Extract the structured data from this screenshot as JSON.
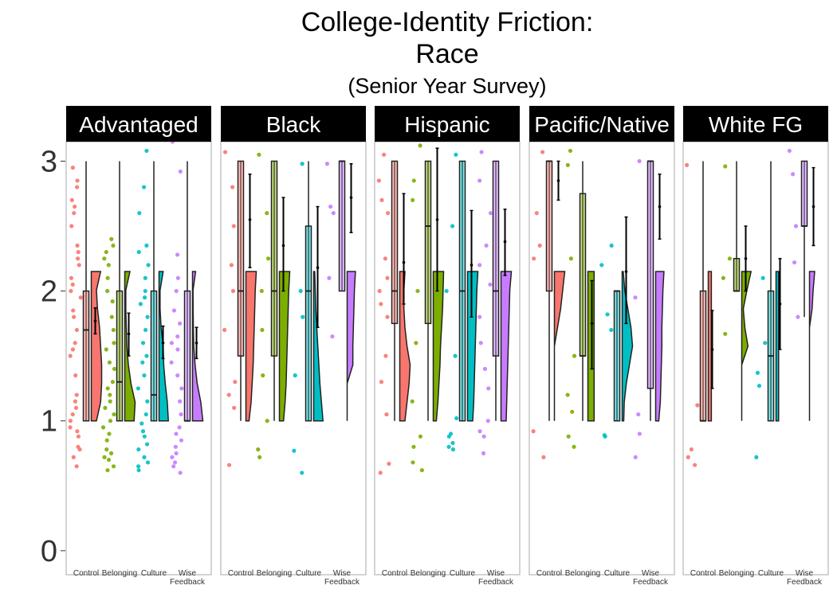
{
  "chart_data": {
    "type": "raincloud",
    "title_line1": "College-Identity Friction:",
    "title_line2": "Race",
    "subtitle": "(Senior Year Survey)",
    "xlabel": "",
    "ylabel": "",
    "ylim": [
      -0.05,
      3.15
    ],
    "y_ticks": [
      "0",
      "1",
      "2",
      "3"
    ],
    "categories": [
      "Control",
      "Belonging",
      "Culture",
      "Wise Feedback"
    ],
    "category_labels": [
      [
        "Control"
      ],
      [
        "Belonging"
      ],
      [
        "Culture"
      ],
      [
        "Wise",
        "Feedback"
      ]
    ],
    "series_colors": {
      "Control": "#F8766D",
      "Belonging": "#7CAE00",
      "Culture": "#00BFC4",
      "Wise Feedback": "#C77CFF"
    },
    "grid": false,
    "facets": [
      {
        "name": "Advantaged",
        "groups": [
          {
            "box": [
              1,
              1,
              1.7,
              2,
              3
            ],
            "mean": 1.77,
            "ci": [
              1.67,
              1.87
            ],
            "violin": [
              0.5,
              0.9,
              1.0,
              1.0,
              0.9,
              0.8,
              0.6,
              0.5,
              0.9
            ],
            "points": [
              0.92,
              0.88,
              1.0,
              0.65,
              0.72,
              0.8,
              0.95,
              1.1,
              1.2,
              1.35,
              1.5,
              1.55,
              1.7,
              1.8,
              1.85,
              1.95,
              2.0,
              2.05,
              2.1,
              2.2,
              2.3,
              2.35,
              2.5,
              2.6,
              2.7,
              2.8,
              2.85,
              2.95,
              0.78,
              1.05,
              1.15,
              1.6,
              2.25,
              2.65
            ]
          },
          {
            "box": [
              1,
              1,
              1.3,
              2,
              3
            ],
            "mean": 1.67,
            "ci": [
              1.5,
              1.83
            ],
            "violin": [
              0.9,
              1.0,
              0.6,
              0.35,
              0.2,
              0.15,
              0.1,
              0.1,
              0.5
            ],
            "points": [
              0.62,
              0.65,
              0.7,
              0.72,
              0.75,
              0.78,
              0.85,
              0.9,
              0.95,
              1.0,
              1.05,
              1.1,
              1.15,
              1.2,
              1.25,
              1.3,
              1.4,
              1.55,
              1.7,
              1.8,
              2.0,
              2.1,
              2.2,
              2.3,
              2.35,
              2.4,
              1.45,
              1.6,
              2.25,
              1.92
            ]
          },
          {
            "box": [
              1,
              1,
              1.2,
              2,
              3
            ],
            "mean": 1.6,
            "ci": [
              1.48,
              1.73
            ],
            "violin": [
              0.9,
              0.8,
              0.6,
              0.45,
              0.4,
              0.2,
              0.1,
              0.1,
              0.4
            ],
            "points": [
              0.62,
              0.65,
              0.68,
              0.72,
              0.78,
              0.82,
              0.88,
              0.92,
              0.98,
              1.05,
              1.15,
              1.25,
              1.35,
              1.5,
              1.6,
              1.7,
              1.8,
              1.9,
              2.0,
              2.1,
              2.2,
              2.3,
              2.35,
              2.6,
              2.8,
              3.08,
              1.45,
              1.95
            ]
          },
          {
            "box": [
              1,
              1,
              1,
              2,
              3
            ],
            "mean": 1.6,
            "ci": [
              1.48,
              1.72
            ],
            "violin": [
              1.0,
              0.8,
              0.45,
              0.25,
              0.12,
              0.08,
              0.06,
              0.05,
              0.3
            ],
            "points": [
              0.6,
              0.65,
              0.68,
              0.72,
              0.75,
              0.8,
              0.85,
              0.9,
              0.95,
              1.05,
              1.15,
              1.25,
              1.35,
              1.45,
              1.55,
              1.65,
              1.75,
              1.85,
              2.0,
              2.1,
              2.28,
              2.92,
              3.15,
              1.6
            ]
          }
        ]
      },
      {
        "name": "Black",
        "groups": [
          {
            "box": [
              1,
              1.5,
              2,
              3,
              3
            ],
            "mean": 2.55,
            "ci": [
              2.18,
              2.9
            ],
            "violin": [
              0.3,
              0.5,
              0.6,
              0.7,
              0.75,
              0.8,
              0.85,
              0.9,
              1.0
            ],
            "points": [
              0.66,
              1.1,
              1.2,
              1.3,
              1.7,
              2.0,
              2.2,
              2.5,
              2.8,
              3.07
            ]
          },
          {
            "box": [
              1,
              1.5,
              2,
              3,
              3
            ],
            "mean": 2.35,
            "ci": [
              2.0,
              2.72
            ],
            "violin": [
              0.4,
              0.55,
              0.65,
              0.7,
              0.75,
              0.8,
              0.85,
              0.9,
              1.0
            ],
            "points": [
              0.72,
              0.78,
              1.0,
              1.35,
              1.7,
              2.0,
              2.25,
              2.6,
              3.05
            ]
          },
          {
            "box": [
              1,
              1,
              2,
              2.5,
              3
            ],
            "mean": 2.18,
            "ci": [
              1.72,
              2.65
            ],
            "violin": [
              0.9,
              0.75,
              0.6,
              0.5,
              0.4,
              0.3,
              0.2,
              0.15,
              0.1
            ],
            "points": [
              0.6,
              0.77,
              1.35,
              1.8,
              2.0,
              2.98
            ]
          },
          {
            "box": [
              2,
              2,
              3,
              3,
              3
            ],
            "mean": 2.72,
            "ci": [
              2.45,
              2.98
            ],
            "violin": [
              0,
              0,
              0,
              0.55,
              0.55,
              0.6,
              0.65,
              0.7,
              0.8
            ],
            "points": [
              1.65,
              2.1,
              2.6,
              2.65,
              2.98
            ]
          }
        ]
      },
      {
        "name": "Hispanic",
        "groups": [
          {
            "box": [
              1,
              1.75,
              2,
              3,
              3
            ],
            "mean": 2.22,
            "ci": [
              1.9,
              2.75
            ],
            "violin": [
              0.5,
              0.7,
              0.9,
              1.0,
              0.7,
              0.5,
              0.4,
              0.4,
              0.5
            ],
            "points": [
              0.6,
              0.67,
              1.05,
              1.3,
              1.5,
              1.8,
              1.9,
              2.0,
              2.1,
              2.25,
              2.6,
              2.7,
              2.85,
              3.05
            ]
          },
          {
            "box": [
              1,
              1.75,
              2.5,
              3,
              3
            ],
            "mean": 2.55,
            "ci": [
              2.0,
              3.1
            ],
            "violin": [
              0.3,
              0.45,
              0.55,
              0.65,
              0.7,
              0.8,
              0.9,
              0.95,
              1.0
            ],
            "points": [
              0.62,
              0.68,
              0.8,
              0.88,
              1.15,
              1.6,
              2.0,
              2.7,
              2.85,
              3.12
            ]
          },
          {
            "box": [
              1,
              1,
              2,
              3,
              3
            ],
            "mean": 2.2,
            "ci": [
              1.8,
              2.62
            ],
            "violin": [
              0.5,
              0.6,
              0.65,
              0.7,
              0.75,
              0.8,
              0.85,
              0.9,
              1.0
            ],
            "points": [
              0.78,
              0.8,
              0.83,
              0.88,
              0.9,
              1.02,
              1.5,
              2.0,
              2.5,
              3.05
            ]
          },
          {
            "box": [
              1,
              1.5,
              2,
              3,
              3
            ],
            "mean": 2.38,
            "ci": [
              2.12,
              2.63
            ],
            "violin": [
              0.5,
              0.55,
              0.6,
              0.65,
              0.7,
              0.75,
              0.8,
              0.85,
              1.0
            ],
            "points": [
              0.75,
              0.88,
              0.92,
              1.0,
              1.25,
              1.4,
              1.6,
              1.8,
              2.05,
              2.2,
              2.35,
              2.6,
              2.85,
              3.07
            ]
          }
        ]
      },
      {
        "name": "Pacific/Native",
        "groups": [
          {
            "box": [
              1,
              2,
              3,
              3,
              3
            ],
            "mean": 2.85,
            "ci": [
              2.7,
              3.0
            ],
            "violin": [
              0,
              0,
              0,
              0,
              0,
              0.3,
              0.6,
              0.8,
              1.0
            ],
            "points": [
              0.72,
              0.92,
              2.25,
              2.35,
              2.6,
              3.07
            ]
          },
          {
            "box": [
              1,
              1.5,
              1.5,
              2.75,
              3
            ],
            "mean": 1.75,
            "ci": [
              1.4,
              2.08
            ],
            "violin": [
              0.6,
              0.6,
              0.6,
              0.6,
              0.6,
              0.6,
              0.6,
              0.6,
              0.6
            ],
            "points": [
              0.8,
              0.88,
              1.07,
              1.2,
              1.5,
              2.25,
              2.97,
              3.08
            ]
          },
          {
            "box": [
              1,
              1,
              2,
              2,
              2
            ],
            "mean": 2.15,
            "ci": [
              1.75,
              2.57
            ],
            "violin": [
              0.15,
              0.2,
              0.4,
              0.7,
              1.0,
              0.85,
              0.55,
              0.25,
              0.1
            ],
            "points": [
              0.88,
              0.89,
              1.7,
              1.82,
              2.2,
              2.35
            ]
          },
          {
            "box": [
              1,
              1.25,
              3,
              3,
              3
            ],
            "mean": 2.65,
            "ci": [
              2.4,
              2.9
            ],
            "violin": [
              0.3,
              0.45,
              0.5,
              0.55,
              0.6,
              0.6,
              0.65,
              0.7,
              0.8
            ],
            "points": [
              0.72,
              0.9,
              1.05,
              1.95,
              3.0
            ]
          }
        ]
      },
      {
        "name": "White FG",
        "groups": [
          {
            "box": [
              1,
              1,
              1,
              2,
              3
            ],
            "mean": 1.55,
            "ci": [
              1.25,
              1.85
            ],
            "violin": [
              0.3,
              0.3,
              0.3,
              0.3,
              0.3,
              0.3,
              0.3,
              0.3,
              0.3
            ],
            "points": [
              0.66,
              0.72,
              0.78,
              1.12,
              2.97
            ]
          },
          {
            "box": [
              2,
              2,
              2,
              2.25,
              3
            ],
            "mean": 2.25,
            "ci": [
              2.0,
              2.5
            ],
            "violin": [
              0,
              0,
              0,
              0,
              0.6,
              0.3,
              0.15,
              0.5,
              0.9
            ],
            "points": [
              1.67,
              2.1,
              2.25,
              2.96
            ]
          },
          {
            "box": [
              1,
              1,
              1.5,
              2,
              3
            ],
            "mean": 1.9,
            "ci": [
              1.55,
              2.25
            ],
            "violin": [
              0.25,
              0.25,
              0.25,
              0.25,
              0.25,
              0.25,
              0.25,
              0.25,
              0.25
            ],
            "points": [
              0.72,
              1.27,
              1.37,
              1.6,
              2.1
            ]
          },
          {
            "box": [
              1.8,
              2.5,
              2.5,
              3,
              3
            ],
            "mean": 2.65,
            "ci": [
              2.35,
              2.95
            ],
            "violin": [
              0,
              0,
              0,
              0,
              0,
              0,
              0.25,
              0.35,
              0.5
            ],
            "points": [
              1.8,
              2.22,
              2.5,
              2.9,
              3.08
            ]
          }
        ]
      }
    ]
  }
}
